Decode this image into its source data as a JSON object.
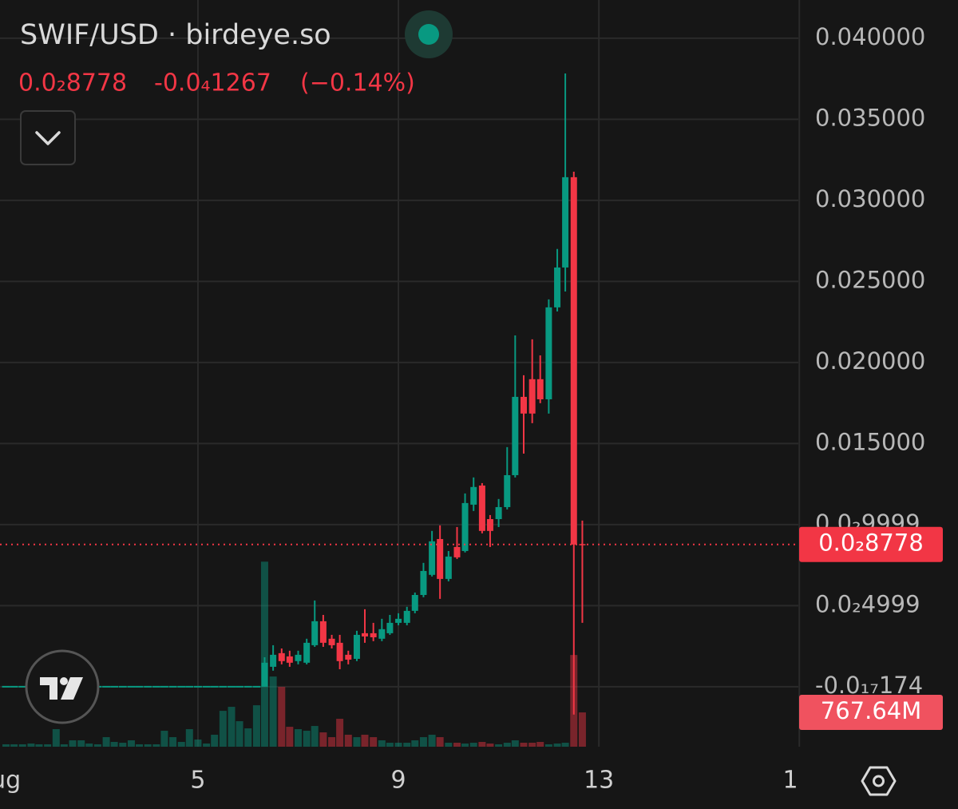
{
  "chart_data": {
    "type": "candlestick",
    "title": "SWIF/USD · birdeye.so",
    "last": {
      "value": 0.008778,
      "label": "0.0₂8778"
    },
    "change": {
      "value": -1.267e-05,
      "label": "-0.0₄1267"
    },
    "change_pct": {
      "value": -0.14,
      "label": "(−0.14%)"
    },
    "up_color": "#089981",
    "down_color": "#f23645",
    "grid": true,
    "xlim": [
      1.05,
      16.98
    ],
    "ylim": [
      -0.0037,
      0.04236
    ],
    "vlim": [
      0,
      4200
    ],
    "xticks": [
      {
        "value": 1,
        "label": "Aug"
      },
      5,
      9,
      13,
      {
        "value": 17,
        "label": "1"
      }
    ],
    "yticks": [
      {
        "value": 0.04,
        "label": "0.040000"
      },
      {
        "value": 0.035,
        "label": "0.035000"
      },
      {
        "value": 0.03,
        "label": "0.030000"
      },
      {
        "value": 0.025,
        "label": "0.025000"
      },
      {
        "value": 0.02,
        "label": "0.020000"
      },
      {
        "value": 0.015,
        "label": "0.015000"
      },
      {
        "value": 0.009999,
        "label": "0.0₂9999"
      },
      {
        "value": 0.004999,
        "label": "0.0₂4999"
      },
      {
        "value": -1.74e-18,
        "label": "-0.0₁₇174"
      }
    ],
    "price_line": {
      "value": 0.008778,
      "label": "0.0₂8778"
    },
    "volume_tag": {
      "value": 767.64,
      "label": "767.64M"
    },
    "x": [
      1.17,
      1.33,
      1.5,
      1.67,
      1.83,
      2,
      2.17,
      2.33,
      2.5,
      2.67,
      2.83,
      3,
      3.17,
      3.33,
      3.5,
      3.67,
      3.83,
      4,
      4.17,
      4.33,
      4.5,
      4.67,
      4.83,
      5,
      5.17,
      5.33,
      5.5,
      5.67,
      5.83,
      6,
      6.17,
      6.33,
      6.5,
      6.67,
      6.83,
      7,
      7.17,
      7.33,
      7.5,
      7.67,
      7.83,
      8,
      8.17,
      8.33,
      8.5,
      8.67,
      8.83,
      9,
      9.17,
      9.33,
      9.5,
      9.67,
      9.83,
      10,
      10.17,
      10.33,
      10.5,
      10.67,
      10.83,
      11,
      11.17,
      11.33,
      11.5,
      11.67,
      11.83,
      12,
      12.17,
      12.33,
      12.5,
      12.67
    ],
    "open": [
      0,
      0,
      0,
      0,
      0,
      0,
      0,
      0,
      0,
      0,
      0,
      0,
      0,
      0,
      0,
      0,
      0,
      0,
      0,
      0,
      0,
      0,
      0,
      0,
      0,
      0,
      0,
      0,
      0,
      0,
      0,
      0,
      0.00123,
      0.00207,
      0.00187,
      0.00158,
      0.00148,
      0.00256,
      0.00404,
      0.00296,
      0.00271,
      0.00197,
      0.00172,
      0.0033,
      0.0033,
      0.00296,
      0.0033,
      0.00394,
      0.00394,
      0.00468,
      0.00566,
      0.0069,
      0.00911,
      0.00665,
      0.00862,
      0.00837,
      0.01123,
      0.01241,
      0.01034,
      0.01034,
      0.01108,
      0.01305,
      0.01788,
      0.01897,
      0.01897,
      0.01773,
      0.0234,
      0.02586,
      0.03143,
      0.0088
    ],
    "high": [
      0,
      0,
      0,
      0,
      0,
      0,
      0,
      0,
      0,
      0,
      0,
      0,
      0,
      0,
      0,
      0,
      0,
      0,
      0,
      0,
      0,
      0,
      0,
      0,
      0,
      0,
      0,
      0,
      0,
      0,
      0,
      0.00182,
      0.00256,
      0.00236,
      0.00222,
      0.00222,
      0.00296,
      0.00532,
      0.00443,
      0.0032,
      0.0032,
      0.00222,
      0.00345,
      0.00478,
      0.00394,
      0.00419,
      0.00443,
      0.00453,
      0.00493,
      0.00581,
      0.00764,
      0.00961,
      0.00995,
      0.00837,
      0.00985,
      0.01192,
      0.01291,
      0.01256,
      0.01059,
      0.01158,
      0.01478,
      0.02167,
      0.01921,
      0.02143,
      0.02044,
      0.02389,
      0.027,
      0.03783,
      0.03177,
      0.01025
    ],
    "low": [
      0,
      0,
      0,
      0,
      0,
      0,
      0,
      0,
      0,
      0,
      0,
      0,
      0,
      0,
      0,
      0,
      0,
      0,
      0,
      0,
      0,
      0,
      0,
      0,
      0,
      0,
      0,
      0,
      0,
      0,
      0,
      0,
      0.00099,
      0.00138,
      0.00123,
      0.00138,
      0.00138,
      0.00246,
      0.00246,
      0.00236,
      0.00108,
      0.00138,
      0.00158,
      0.00271,
      0.00281,
      0.00281,
      0.0032,
      0.00379,
      0.00379,
      0.00453,
      0.00552,
      0.0068,
      0.00542,
      0.0065,
      0.00788,
      0.00828,
      0.01084,
      0.00946,
      0.00862,
      0.00985,
      0.01094,
      0.01291,
      0.01438,
      0.01626,
      0.01749,
      0.01685,
      0.02315,
      0.02438,
      -0.00172,
      0.00394
    ],
    "close": [
      0,
      0,
      0,
      0,
      0,
      0,
      0,
      0,
      0,
      0,
      0,
      0,
      0,
      0,
      0,
      0,
      0,
      0,
      0,
      0,
      0,
      0,
      0,
      0,
      0,
      0,
      0,
      0,
      0,
      0,
      0,
      0.00148,
      0.00197,
      0.00158,
      0.00148,
      0.00197,
      0.00271,
      0.00404,
      0.00271,
      0.00256,
      0.00158,
      0.00167,
      0.0032,
      0.0031,
      0.00305,
      0.00355,
      0.00394,
      0.00419,
      0.00468,
      0.00566,
      0.00714,
      0.00897,
      0.00665,
      0.00803,
      0.00798,
      0.01133,
      0.01232,
      0.00961,
      0.00961,
      0.01108,
      0.01305,
      0.01788,
      0.01685,
      0.01685,
      0.01773,
      0.0234,
      0.02586,
      0.03143,
      0.00877,
      0.008778
    ],
    "volume": [
      54,
      54,
      54,
      71,
      54,
      54,
      393,
      54,
      143,
      143,
      71,
      54,
      214,
      107,
      89,
      143,
      54,
      54,
      54,
      357,
      214,
      107,
      393,
      161,
      71,
      268,
      803,
      893,
      571,
      411,
      928,
      4141,
      1571,
      1339,
      446,
      393,
      357,
      464,
      321,
      214,
      625,
      268,
      214,
      268,
      214,
      143,
      89,
      89,
      89,
      143,
      214,
      268,
      214,
      89,
      89,
      71,
      89,
      107,
      71,
      54,
      89,
      143,
      89,
      89,
      107,
      54,
      71,
      89,
      2053,
      767.64
    ]
  }
}
